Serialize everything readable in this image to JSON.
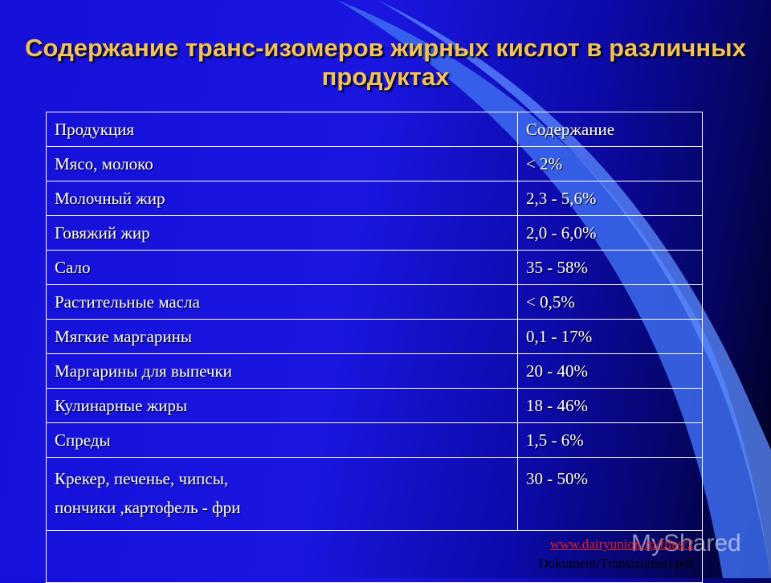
{
  "slide": {
    "title": "Содержание транс-изомеров жирных кислот в различных продуктах"
  },
  "table": {
    "headers": [
      "Продукция",
      "Содержание"
    ],
    "rows": [
      [
        "Мясо, молоко",
        "< 2%"
      ],
      [
        "Молочный жир",
        "2,3 - 5,6%"
      ],
      [
        "Говяжий жир",
        "2,0 - 6,0%"
      ],
      [
        "Сало",
        "35  - 58%"
      ],
      [
        "Растительные масла",
        "< 0,5%"
      ],
      [
        "Мягкие маргарины",
        "0,1 -  17%"
      ],
      [
        "Маргарины для выпечки",
        "20  - 40%"
      ],
      [
        "Кулинарные жиры",
        "18  - 46%"
      ],
      [
        "Спреды",
        "1,5 - 6%"
      ],
      [
        "Крекер, печенье, чипсы,",
        "30  - 50%"
      ]
    ],
    "last_row_line2": "пончики ,картофель - фри"
  },
  "source": {
    "url_text": "www.dairyunion.ru/files/2",
    "doc_text": "Dokument/Transizomeri.pdf"
  },
  "watermark": "MyShared"
}
